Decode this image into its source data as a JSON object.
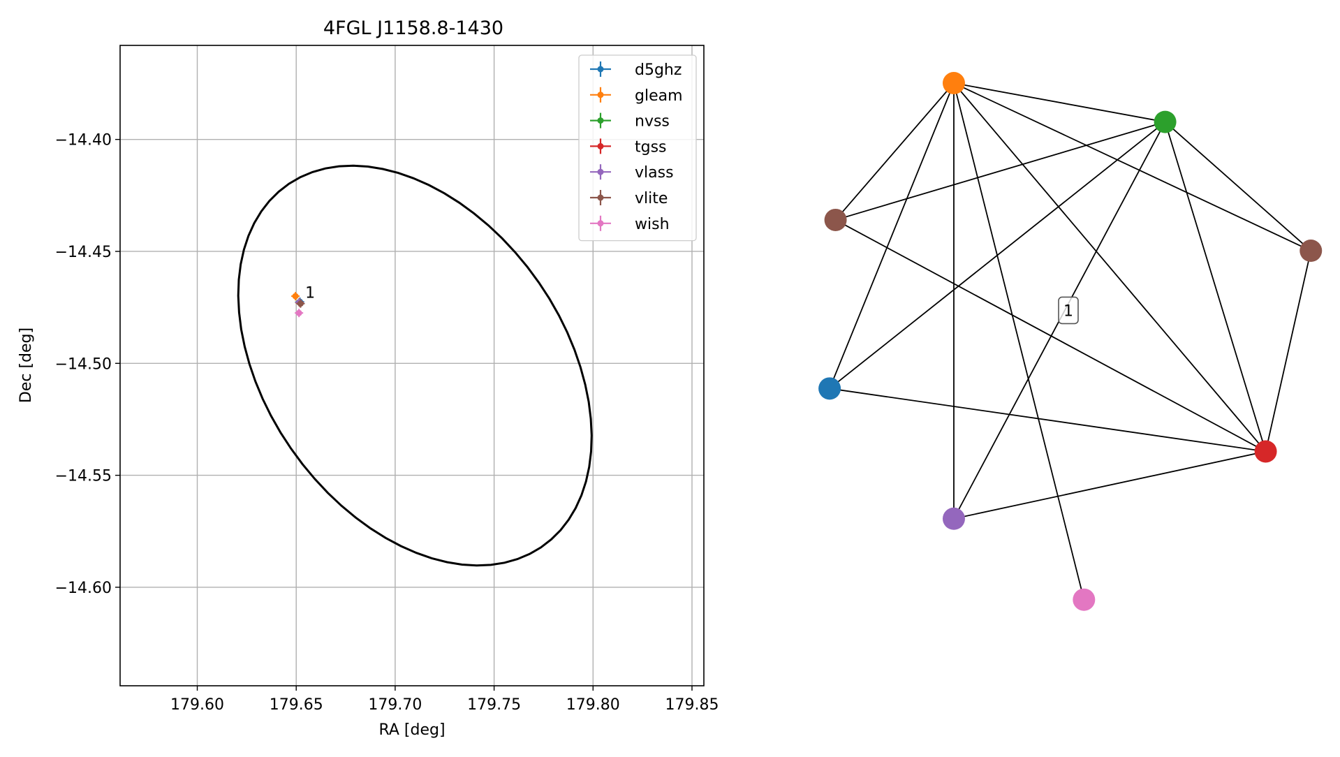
{
  "chart_data": [
    {
      "type": "scatter",
      "title": "4FGL J1158.8-1430",
      "xlabel": "RA [deg]",
      "ylabel": "Dec [deg]",
      "xlim": [
        179.561,
        179.856
      ],
      "ylim": [
        -14.644,
        -14.358
      ],
      "xticks": [
        179.6,
        179.65,
        179.7,
        179.75,
        179.8,
        179.85
      ],
      "xtick_labels": [
        "179.60",
        "179.65",
        "179.70",
        "179.75",
        "179.80",
        "179.85"
      ],
      "yticks": [
        -14.4,
        -14.45,
        -14.5,
        -14.55,
        -14.6
      ],
      "ytick_labels": [
        "−14.40",
        "−14.45",
        "−14.50",
        "−14.55",
        "−14.60"
      ],
      "grid": true,
      "legend_position": "top-right",
      "ellipse": {
        "center": [
          179.71,
          -14.501
        ],
        "semi_axis_along_angle": 0.104,
        "semi_axis_perpendicular": 0.0716,
        "angle_deg": -45,
        "color": "#000000"
      },
      "series": [
        {
          "name": "d5ghz",
          "color": "#1f77b4",
          "points": [
            [
              179.6519,
              -14.4725
            ]
          ]
        },
        {
          "name": "gleam",
          "color": "#ff7f0e",
          "points": [
            [
              179.6496,
              -14.47
            ]
          ]
        },
        {
          "name": "nvss",
          "color": "#2ca02c",
          "points": [
            [
              179.6515,
              -14.4727
            ]
          ]
        },
        {
          "name": "tgss",
          "color": "#d62728",
          "points": [
            [
              179.6517,
              -14.4729
            ]
          ]
        },
        {
          "name": "vlass",
          "color": "#9467bd",
          "points": [
            [
              179.6516,
              -14.4727
            ]
          ]
        },
        {
          "name": "vlite",
          "color": "#8c564b",
          "points": [
            [
              179.6522,
              -14.4733
            ]
          ]
        },
        {
          "name": "wish",
          "color": "#e377c2",
          "points": [
            [
              179.6514,
              -14.4775
            ]
          ]
        }
      ],
      "annotations": [
        {
          "text": "1",
          "x": 179.6535,
          "y": -14.4695
        }
      ]
    },
    {
      "type": "network",
      "nodes": [
        {
          "id": "gleam",
          "color": "#ff7f0e",
          "x": 0.274,
          "y": 0.118
        },
        {
          "id": "nvss",
          "color": "#2ca02c",
          "x": 0.667,
          "y": 0.2
        },
        {
          "id": "vlite_a",
          "color": "#8c564b",
          "x": 0.054,
          "y": 0.407
        },
        {
          "id": "vlite_b",
          "color": "#8c564b",
          "x": 0.938,
          "y": 0.472
        },
        {
          "id": "d5ghz",
          "color": "#1f77b4",
          "x": 0.043,
          "y": 0.763
        },
        {
          "id": "tgss",
          "color": "#d62728",
          "x": 0.854,
          "y": 0.896
        },
        {
          "id": "vlass",
          "color": "#9467bd",
          "x": 0.274,
          "y": 1.038
        },
        {
          "id": "wish",
          "color": "#e377c2",
          "x": 0.516,
          "y": 1.209
        }
      ],
      "edges": [
        [
          "gleam",
          "nvss"
        ],
        [
          "gleam",
          "vlite_a"
        ],
        [
          "gleam",
          "d5ghz"
        ],
        [
          "gleam",
          "vlass"
        ],
        [
          "gleam",
          "tgss"
        ],
        [
          "gleam",
          "vlite_b"
        ],
        [
          "gleam",
          "wish"
        ],
        [
          "nvss",
          "vlite_a"
        ],
        [
          "nvss",
          "d5ghz"
        ],
        [
          "nvss",
          "vlass"
        ],
        [
          "nvss",
          "tgss"
        ],
        [
          "nvss",
          "vlite_b"
        ],
        [
          "vlite_a",
          "tgss"
        ],
        [
          "d5ghz",
          "tgss"
        ],
        [
          "tgss",
          "vlass"
        ],
        [
          "tgss",
          "vlite_b"
        ]
      ],
      "label_box": {
        "text": "1",
        "x": 0.487,
        "y": 0.598
      }
    }
  ]
}
